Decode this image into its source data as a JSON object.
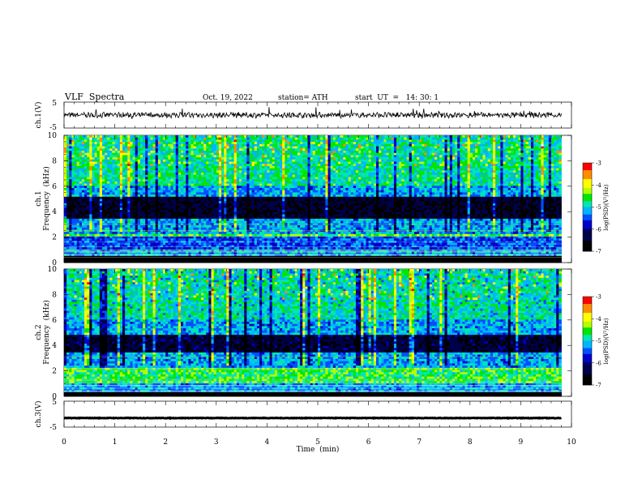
{
  "header": {
    "title": "VLF  Spectra",
    "date": "Oct. 19, 2022",
    "station": "station= ATH",
    "start": "start  UT  =   14: 30: 1"
  },
  "colors": {
    "palette": [
      "#000000",
      "#00004a",
      "#0000c8",
      "#0050ff",
      "#00b4ff",
      "#00e6b4",
      "#00e600",
      "#b4ff00",
      "#ffff00",
      "#ff8c00",
      "#ff0000",
      "#ffffff"
    ]
  },
  "chart_data": [
    {
      "type": "line",
      "name": "ch1-waveform",
      "ylabel": "ch.1(V)",
      "ylim": [
        -5,
        5
      ],
      "yticks": [
        "5",
        "-5"
      ],
      "xlim": [
        0,
        10
      ],
      "mean_value": 0,
      "amplitude_approx": 1.5
    },
    {
      "type": "heatmap",
      "name": "ch1-spectrogram",
      "ylabel": "ch.1\nFrequency  (kHz)",
      "ylabel_lines": [
        "ch.1",
        "Frequency  (kHz)"
      ],
      "xlim": [
        0,
        9.8
      ],
      "ylim": [
        0,
        10
      ],
      "yticks": [
        "0",
        "2",
        "4",
        "6",
        "8",
        "10"
      ],
      "color_range": [
        -7,
        -3
      ],
      "dominant_bands_khz": [
        [
          0,
          0.6,
          -7
        ],
        [
          1.0,
          2.0,
          -5.5
        ],
        [
          2.1,
          2.3,
          -4.5
        ],
        [
          3.5,
          5.2,
          -6.5
        ],
        [
          6,
          10,
          -4.8
        ]
      ],
      "colorbar": {
        "label": "log(PSD)(V²/Hz)",
        "ticks": [
          "-3",
          "-4",
          "-5",
          "-6",
          "-7"
        ]
      }
    },
    {
      "type": "heatmap",
      "name": "ch2-spectrogram",
      "ylabel": "ch.2\nFrequency  (kHz)",
      "ylabel_lines": [
        "ch.2",
        "Frequency  (kHz)"
      ],
      "xlim": [
        0,
        9.8
      ],
      "ylim": [
        0,
        10
      ],
      "yticks": [
        "0",
        "2",
        "4",
        "6",
        "8",
        "10"
      ],
      "color_range": [
        -7,
        -3
      ],
      "dominant_bands_khz": [
        [
          0,
          0.4,
          -7
        ],
        [
          1.0,
          2.2,
          -4.6
        ],
        [
          3.5,
          4.8,
          -6.4
        ],
        [
          6,
          10,
          -4.9
        ]
      ],
      "colorbar": {
        "label": "log(PSD)(V²/Hz)",
        "ticks": [
          "-3",
          "-4",
          "-5",
          "-6",
          "-7"
        ]
      }
    },
    {
      "type": "line",
      "name": "ch3-waveform",
      "ylabel": "ch.3(V)",
      "ylim": [
        -5,
        5
      ],
      "yticks": [
        "5",
        "-5"
      ],
      "xlim": [
        0,
        10
      ],
      "mean_value": -1.5,
      "amplitude_approx": 0.2
    }
  ],
  "x_axis": {
    "label": "Time  (min)",
    "ticks": [
      "0",
      "1",
      "2",
      "3",
      "4",
      "5",
      "6",
      "7",
      "8",
      "9",
      "10"
    ],
    "range": [
      0,
      10
    ]
  }
}
